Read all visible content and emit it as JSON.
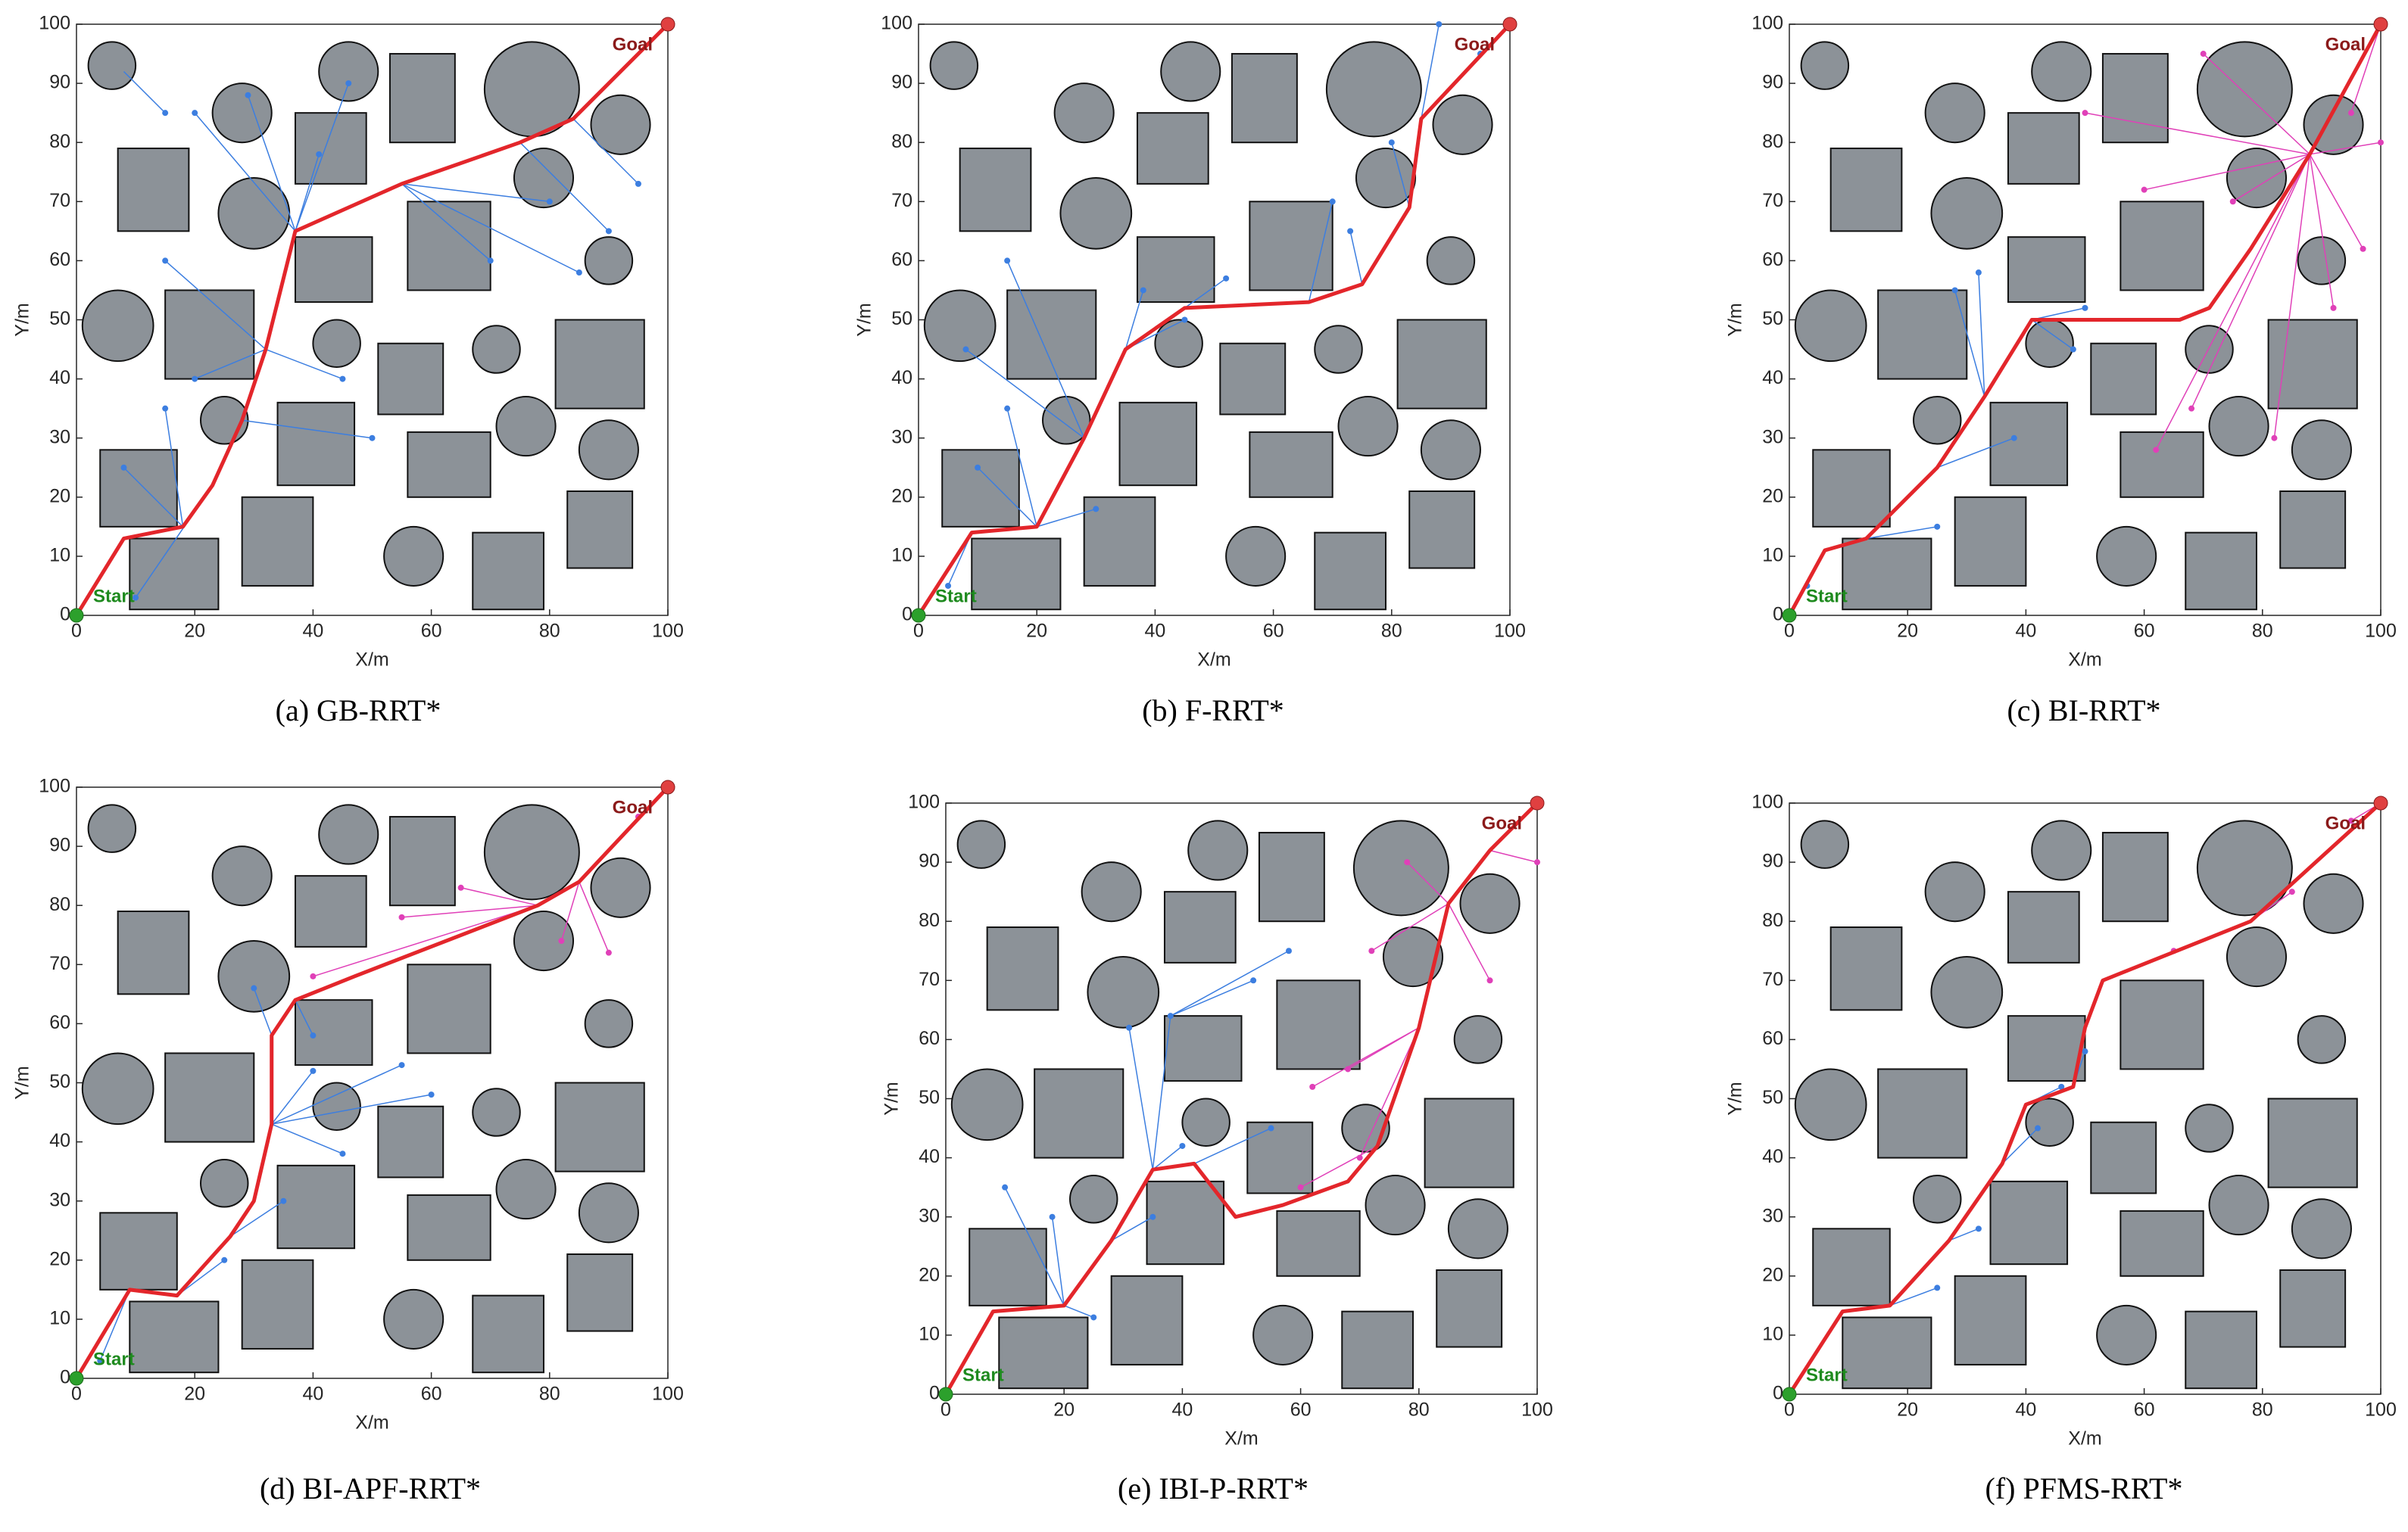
{
  "obstacles": {
    "circles": [
      [
        6,
        93,
        4
      ],
      [
        28,
        85,
        5
      ],
      [
        46,
        92,
        5
      ],
      [
        77,
        89,
        8
      ],
      [
        92,
        83,
        5
      ],
      [
        30,
        68,
        6
      ],
      [
        79,
        74,
        5
      ],
      [
        90,
        60,
        4
      ],
      [
        7,
        49,
        6
      ],
      [
        44,
        46,
        4
      ],
      [
        71,
        45,
        4
      ],
      [
        25,
        33,
        4
      ],
      [
        76,
        32,
        5
      ],
      [
        90,
        28,
        5
      ],
      [
        57,
        10,
        5
      ]
    ],
    "rects": [
      [
        7,
        65,
        19,
        79
      ],
      [
        37,
        73,
        49,
        85
      ],
      [
        53,
        80,
        64,
        95
      ],
      [
        37,
        53,
        50,
        64
      ],
      [
        56,
        55,
        70,
        70
      ],
      [
        15,
        40,
        30,
        55
      ],
      [
        51,
        34,
        62,
        46
      ],
      [
        81,
        35,
        96,
        50
      ],
      [
        34,
        22,
        47,
        36
      ],
      [
        56,
        20,
        70,
        31
      ],
      [
        4,
        15,
        17,
        28
      ],
      [
        28,
        5,
        40,
        20
      ],
      [
        9,
        1,
        24,
        13
      ],
      [
        67,
        1,
        79,
        14
      ],
      [
        83,
        8,
        94,
        21
      ]
    ]
  },
  "chart_data": [
    {
      "type": "line",
      "title": "(a) GB-RRT*",
      "x_label": "X/m",
      "y_label": "Y/m",
      "start_label": "Start",
      "goal_label": "Goal",
      "xlim": [
        0,
        100
      ],
      "ylim": [
        0,
        100
      ],
      "xticks": [
        0,
        20,
        40,
        60,
        80,
        100
      ],
      "yticks": [
        0,
        10,
        20,
        30,
        40,
        50,
        60,
        70,
        80,
        90,
        100
      ],
      "path": {
        "color": "#e3262b",
        "x": [
          0,
          8,
          18,
          23,
          28,
          32,
          37,
          55,
          75,
          84,
          100
        ],
        "y": [
          0,
          13,
          15,
          22,
          33,
          45,
          65,
          73,
          80,
          84,
          100
        ]
      },
      "branches": [
        {
          "color": "#3c7ee0",
          "segments": [
            [
              37,
              65,
              29,
              88
            ],
            [
              37,
              65,
              20,
              85
            ],
            [
              37,
              65,
              46,
              90
            ],
            [
              37,
              65,
              41,
              78
            ],
            [
              8,
              92,
              15,
              85
            ],
            [
              55,
              73,
              70,
              60
            ],
            [
              55,
              73,
              85,
              58
            ],
            [
              75,
              80,
              90,
              65
            ],
            [
              32,
              45,
              15,
              60
            ],
            [
              32,
              45,
              20,
              40
            ],
            [
              32,
              45,
              45,
              40
            ],
            [
              18,
              15,
              8,
              25
            ],
            [
              18,
              15,
              15,
              35
            ],
            [
              28,
              33,
              50,
              30
            ],
            [
              23,
              22,
              10,
              3
            ],
            [
              84,
              84,
              95,
              73
            ],
            [
              55,
              73,
              80,
              70
            ]
          ]
        }
      ]
    },
    {
      "type": "line",
      "title": "(b) F-RRT*",
      "x_label": "X/m",
      "y_label": "Y/m",
      "start_label": "Start",
      "goal_label": "Goal",
      "xlim": [
        0,
        100
      ],
      "ylim": [
        0,
        100
      ],
      "xticks": [
        0,
        20,
        40,
        60,
        80,
        100
      ],
      "yticks": [
        0,
        10,
        20,
        30,
        40,
        50,
        60,
        70,
        80,
        90,
        100
      ],
      "path": {
        "color": "#e3262b",
        "x": [
          0,
          9,
          20,
          28,
          35,
          45,
          66,
          75,
          83,
          85,
          100
        ],
        "y": [
          0,
          14,
          15,
          30,
          45,
          52,
          53,
          56,
          69,
          84,
          100
        ]
      },
      "branches": [
        {
          "color": "#3c7ee0",
          "segments": [
            [
              20,
              15,
              10,
              25
            ],
            [
              20,
              15,
              15,
              35
            ],
            [
              20,
              15,
              30,
              18
            ],
            [
              28,
              30,
              8,
              45
            ],
            [
              28,
              30,
              15,
              60
            ],
            [
              35,
              45,
              38,
              55
            ],
            [
              45,
              52,
              52,
              57
            ],
            [
              66,
              53,
              70,
              70
            ],
            [
              75,
              56,
              73,
              65
            ],
            [
              83,
              69,
              80,
              80
            ],
            [
              85,
              84,
              88,
              100
            ],
            [
              85,
              84,
              95,
              95
            ],
            [
              9,
              14,
              5,
              5
            ],
            [
              35,
              45,
              45,
              50
            ]
          ]
        }
      ]
    },
    {
      "type": "line",
      "title": "(c) BI-RRT*",
      "x_label": "X/m",
      "y_label": "Y/m",
      "start_label": "Start",
      "goal_label": "Goal",
      "xlim": [
        0,
        100
      ],
      "ylim": [
        0,
        100
      ],
      "xticks": [
        0,
        20,
        40,
        60,
        80,
        100
      ],
      "yticks": [
        0,
        10,
        20,
        30,
        40,
        50,
        60,
        70,
        80,
        90,
        100
      ],
      "path": {
        "color": "#e3262b",
        "x": [
          0,
          6,
          13,
          25,
          33,
          41,
          53,
          66,
          71,
          78,
          88,
          100
        ],
        "y": [
          0,
          11,
          13,
          25,
          37,
          50,
          50,
          50,
          52,
          62,
          78,
          100
        ]
      },
      "branches": [
        {
          "color": "#3c7ee0",
          "segments": [
            [
              13,
              13,
              25,
              15
            ],
            [
              25,
              25,
              38,
              30
            ],
            [
              33,
              37,
              28,
              55
            ],
            [
              33,
              37,
              32,
              58
            ],
            [
              41,
              50,
              50,
              52
            ],
            [
              41,
              50,
              48,
              45
            ],
            [
              6,
              11,
              3,
              5
            ]
          ]
        },
        {
          "color": "#e040b8",
          "segments": [
            [
              88,
              78,
              50,
              85
            ],
            [
              88,
              78,
              60,
              72
            ],
            [
              88,
              78,
              70,
              95
            ],
            [
              88,
              78,
              97,
              62
            ],
            [
              88,
              78,
              92,
              52
            ],
            [
              88,
              78,
              68,
              35
            ],
            [
              88,
              78,
              82,
              30
            ],
            [
              88,
              78,
              62,
              28
            ],
            [
              88,
              78,
              100,
              80
            ],
            [
              100,
              100,
              95,
              85
            ],
            [
              88,
              78,
              75,
              70
            ]
          ]
        }
      ]
    },
    {
      "type": "line",
      "title": "(d) BI-APF-RRT*",
      "x_label": "X/m",
      "y_label": "Y/m",
      "start_label": "Start",
      "goal_label": "Goal",
      "xlim": [
        0,
        100
      ],
      "ylim": [
        0,
        100
      ],
      "xticks": [
        0,
        20,
        40,
        60,
        80,
        100
      ],
      "yticks": [
        0,
        10,
        20,
        30,
        40,
        50,
        60,
        70,
        80,
        90,
        100
      ],
      "path": {
        "color": "#e3262b",
        "x": [
          0,
          9,
          17,
          26,
          30,
          33,
          33,
          37,
          47,
          78,
          85,
          100
        ],
        "y": [
          0,
          15,
          14,
          24,
          30,
          43,
          58,
          64,
          68,
          80,
          84,
          100
        ]
      },
      "branches": [
        {
          "color": "#3c7ee0",
          "segments": [
            [
              33,
              43,
              40,
              52
            ],
            [
              33,
              43,
              60,
              48
            ],
            [
              33,
              43,
              55,
              53
            ],
            [
              33,
              58,
              30,
              66
            ],
            [
              17,
              14,
              25,
              20
            ],
            [
              26,
              24,
              35,
              30
            ],
            [
              37,
              64,
              40,
              58
            ],
            [
              9,
              15,
              4,
              3
            ],
            [
              33,
              43,
              45,
              38
            ]
          ]
        },
        {
          "color": "#e040b8",
          "segments": [
            [
              78,
              80,
              40,
              68
            ],
            [
              78,
              80,
              55,
              78
            ],
            [
              85,
              84,
              90,
              72
            ],
            [
              85,
              84,
              82,
              74
            ],
            [
              100,
              100,
              95,
              95
            ],
            [
              78,
              80,
              65,
              83
            ]
          ]
        }
      ]
    },
    {
      "type": "line",
      "title": "(e) IBI-P-RRT*",
      "x_label": "X/m",
      "y_label": "Y/m",
      "start_label": "Start",
      "goal_label": "Goal",
      "xlim": [
        0,
        100
      ],
      "ylim": [
        0,
        100
      ],
      "xticks": [
        0,
        20,
        40,
        60,
        80,
        100
      ],
      "yticks": [
        0,
        10,
        20,
        30,
        40,
        50,
        60,
        70,
        80,
        90,
        100
      ],
      "path": {
        "color": "#e3262b",
        "x": [
          0,
          8,
          20,
          28,
          35,
          42,
          49,
          57,
          68,
          73,
          80,
          85,
          92,
          100
        ],
        "y": [
          0,
          14,
          15,
          26,
          38,
          39,
          30,
          32,
          36,
          42,
          62,
          83,
          92,
          100
        ]
      },
      "branches": [
        {
          "color": "#3c7ee0",
          "segments": [
            [
              35,
              38,
              31,
              62
            ],
            [
              35,
              38,
              38,
              64
            ],
            [
              38,
              64,
              58,
              75
            ],
            [
              38,
              64,
              52,
              70
            ],
            [
              20,
              15,
              10,
              35
            ],
            [
              20,
              15,
              18,
              30
            ],
            [
              20,
              15,
              25,
              13
            ],
            [
              28,
              26,
              35,
              30
            ],
            [
              42,
              39,
              55,
              45
            ],
            [
              35,
              38,
              40,
              42
            ]
          ]
        },
        {
          "color": "#e040b8",
          "segments": [
            [
              80,
              62,
              70,
              40
            ],
            [
              80,
              62,
              62,
              52
            ],
            [
              85,
              83,
              72,
              75
            ],
            [
              85,
              83,
              92,
              70
            ],
            [
              85,
              83,
              78,
              90
            ],
            [
              73,
              42,
              60,
              35
            ],
            [
              92,
              92,
              100,
              90
            ],
            [
              80,
              62,
              68,
              55
            ]
          ]
        }
      ]
    },
    {
      "type": "line",
      "title": "(f) PFMS-RRT*",
      "x_label": "X/m",
      "y_label": "Y/m",
      "start_label": "Start",
      "goal_label": "Goal",
      "xlim": [
        0,
        100
      ],
      "ylim": [
        0,
        100
      ],
      "xticks": [
        0,
        20,
        40,
        60,
        80,
        100
      ],
      "yticks": [
        0,
        10,
        20,
        30,
        40,
        50,
        60,
        70,
        80,
        90,
        100
      ],
      "path": {
        "color": "#e3262b",
        "x": [
          0,
          9,
          17,
          27,
          36,
          40,
          48,
          50,
          53,
          78,
          100
        ],
        "y": [
          0,
          14,
          15,
          26,
          39,
          49,
          52,
          62,
          70,
          80,
          100
        ]
      },
      "branches": [
        {
          "color": "#3c7ee0",
          "segments": [
            [
              17,
              15,
              25,
              18
            ],
            [
              27,
              26,
              32,
              28
            ],
            [
              36,
              39,
              42,
              45
            ],
            [
              40,
              49,
              46,
              52
            ],
            [
              48,
              52,
              50,
              58
            ]
          ]
        },
        {
          "color": "#e040b8",
          "segments": [
            [
              78,
              80,
              85,
              85
            ],
            [
              78,
              80,
              65,
              75
            ],
            [
              100,
              100,
              95,
              97
            ]
          ]
        }
      ]
    }
  ]
}
